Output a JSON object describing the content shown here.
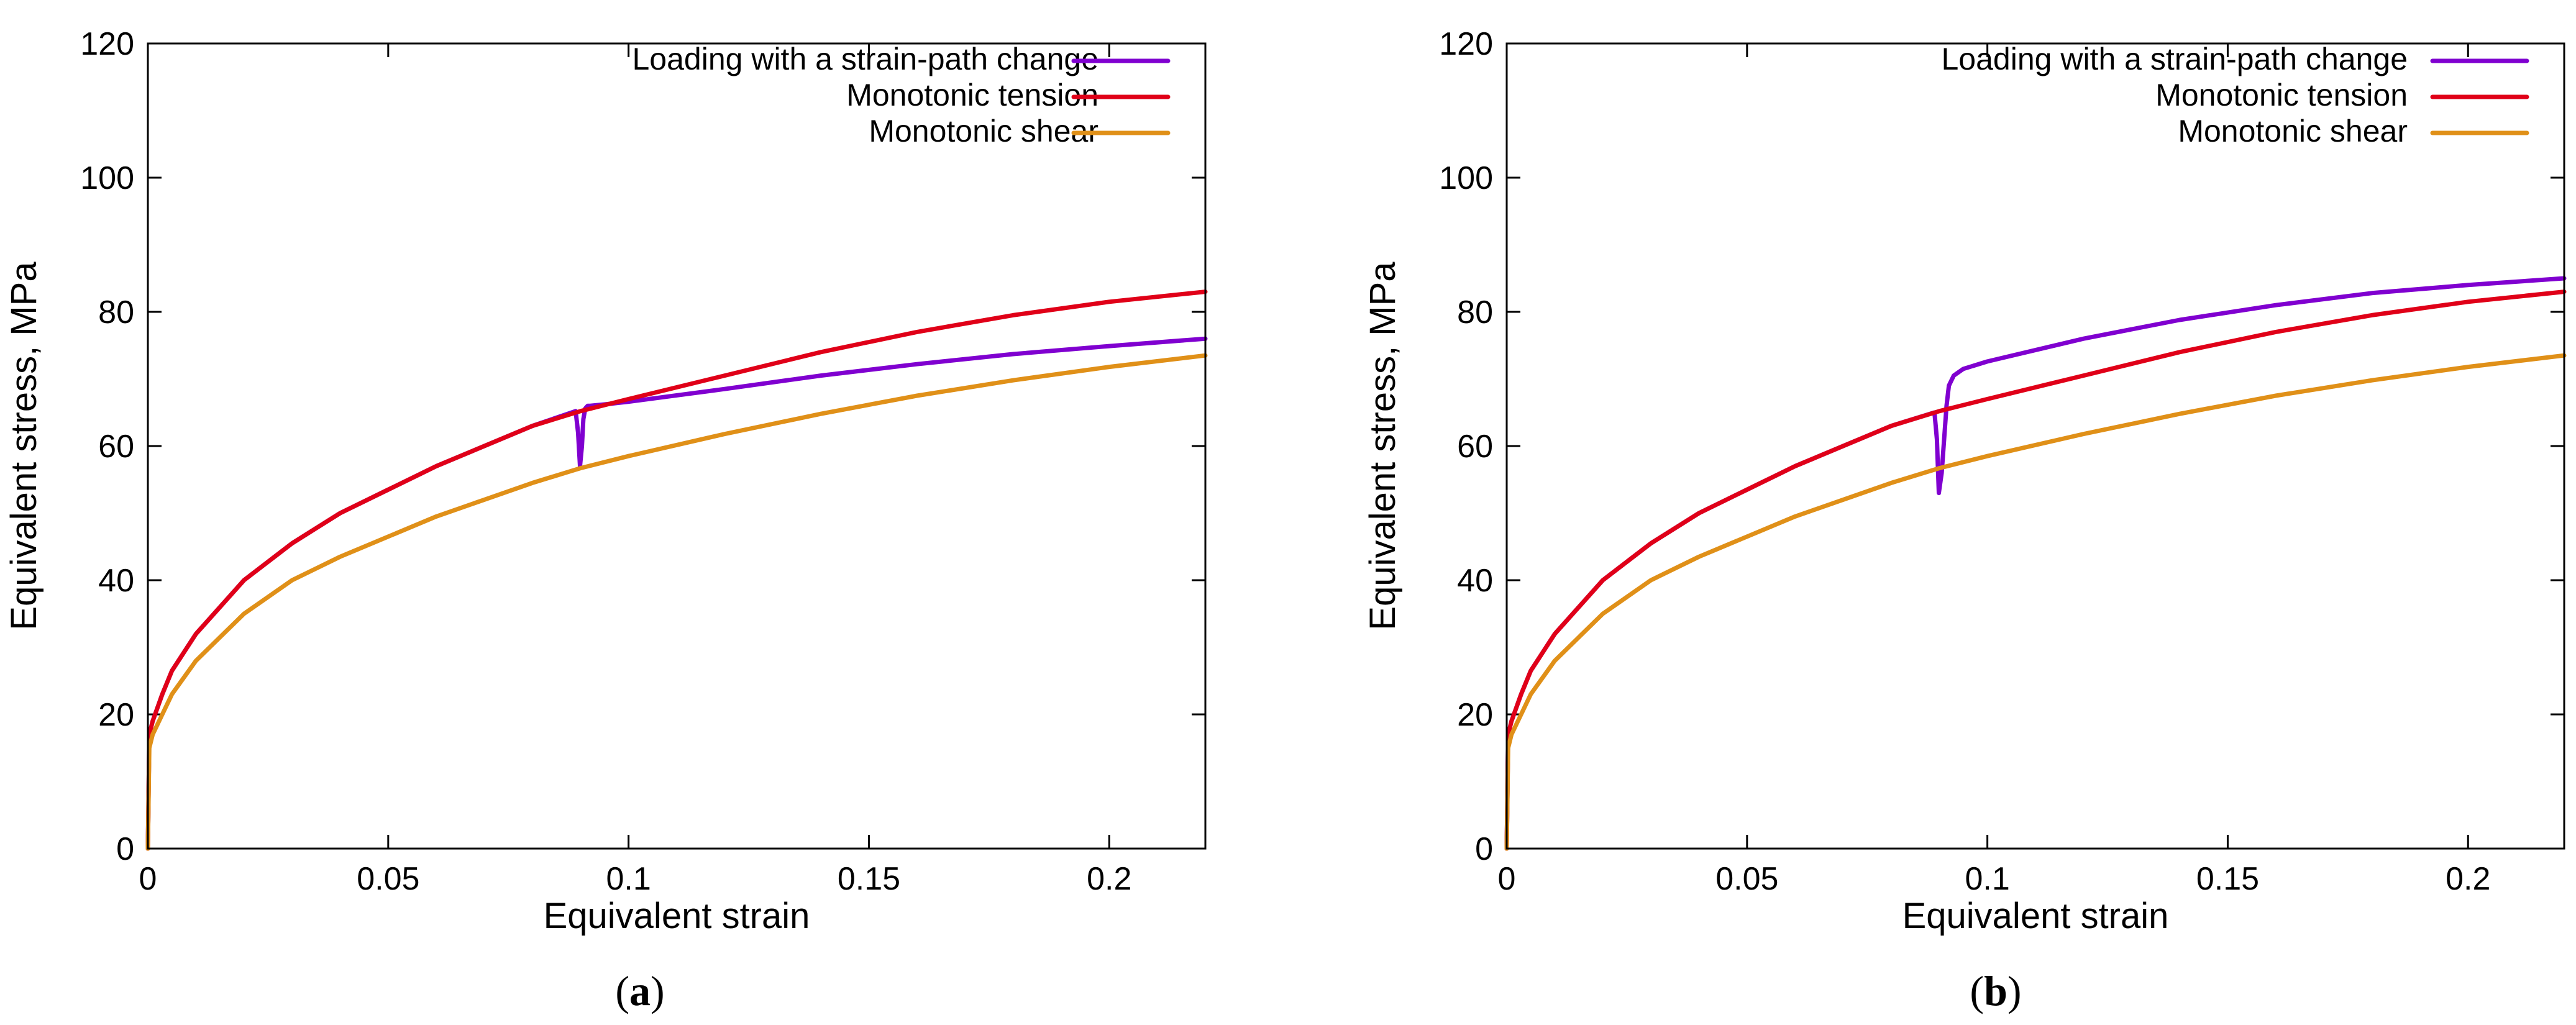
{
  "chart_data": [
    {
      "type": "line",
      "panel": "a",
      "caption_open": "(",
      "caption_label": "a",
      "caption_close": ")",
      "xlabel": "Equivalent strain",
      "ylabel": "Equivalent stress, MPa",
      "xlim": [
        0,
        0.22
      ],
      "ylim": [
        0,
        120
      ],
      "xticks": [
        0,
        0.05,
        0.1,
        0.15,
        0.2
      ],
      "xtick_labels": [
        "0",
        "0.05",
        "0.1",
        "0.15",
        "0.2"
      ],
      "yticks": [
        0,
        20,
        40,
        60,
        80,
        100,
        120
      ],
      "ytick_labels": [
        "0",
        "20",
        "40",
        "60",
        "80",
        "100",
        "120"
      ],
      "grid": false,
      "legend_position": "top-right",
      "series": [
        {
          "name": "Loading with a strain-path change",
          "color": "#8000d0",
          "x": [
            0,
            0.0003,
            0.001,
            0.003,
            0.005,
            0.01,
            0.02,
            0.03,
            0.04,
            0.05,
            0.06,
            0.07,
            0.08,
            0.089,
            0.0895,
            0.0899,
            0.0903,
            0.0906,
            0.091,
            0.0915,
            0.092,
            0.095,
            0.1,
            0.12,
            0.14,
            0.16,
            0.18,
            0.2,
            0.22
          ],
          "y": [
            0,
            17,
            19,
            23,
            26.5,
            32,
            40,
            45.5,
            50,
            53.5,
            57,
            60,
            63,
            65.2,
            62,
            57,
            60,
            64,
            65.6,
            66,
            66,
            66.2,
            66.6,
            68.5,
            70.5,
            72.2,
            73.7,
            74.9,
            76
          ]
        },
        {
          "name": "Monotonic tension",
          "color": "#e00018",
          "x": [
            0,
            0.0003,
            0.001,
            0.003,
            0.005,
            0.01,
            0.02,
            0.03,
            0.04,
            0.05,
            0.06,
            0.07,
            0.08,
            0.09,
            0.1,
            0.12,
            0.14,
            0.16,
            0.18,
            0.2,
            0.22
          ],
          "y": [
            0,
            17,
            19,
            23,
            26.5,
            32,
            40,
            45.5,
            50,
            53.5,
            57,
            60,
            63,
            65.2,
            67,
            70.5,
            74,
            77,
            79.5,
            81.5,
            83
          ]
        },
        {
          "name": "Monotonic shear",
          "color": "#e09018",
          "x": [
            0,
            0.0003,
            0.001,
            0.003,
            0.005,
            0.01,
            0.02,
            0.03,
            0.04,
            0.05,
            0.06,
            0.07,
            0.08,
            0.09,
            0.1,
            0.12,
            0.14,
            0.16,
            0.18,
            0.2,
            0.22
          ],
          "y": [
            0,
            15,
            17,
            20,
            23,
            28,
            35,
            40,
            43.5,
            46.5,
            49.5,
            52,
            54.5,
            56.7,
            58.5,
            61.8,
            64.8,
            67.5,
            69.8,
            71.8,
            73.5
          ]
        }
      ]
    },
    {
      "type": "line",
      "panel": "b",
      "caption_open": "(",
      "caption_label": "b",
      "caption_close": ")",
      "xlabel": "Equivalent strain",
      "ylabel": "Equivalent stress, MPa",
      "xlim": [
        0,
        0.22
      ],
      "ylim": [
        0,
        120
      ],
      "xticks": [
        0,
        0.05,
        0.1,
        0.15,
        0.2
      ],
      "xtick_labels": [
        "0",
        "0.05",
        "0.1",
        "0.15",
        "0.2"
      ],
      "yticks": [
        0,
        20,
        40,
        60,
        80,
        100,
        120
      ],
      "ytick_labels": [
        "0",
        "20",
        "40",
        "60",
        "80",
        "100",
        "120"
      ],
      "grid": false,
      "legend_position": "top-right",
      "series": [
        {
          "name": "Loading with a strain-path change",
          "color": "#8000d0",
          "x": [
            0,
            0.0003,
            0.001,
            0.003,
            0.005,
            0.01,
            0.02,
            0.03,
            0.04,
            0.05,
            0.06,
            0.07,
            0.08,
            0.089,
            0.0895,
            0.0899,
            0.0905,
            0.091,
            0.0915,
            0.092,
            0.093,
            0.095,
            0.1,
            0.12,
            0.14,
            0.16,
            0.18,
            0.2,
            0.22
          ],
          "y": [
            0,
            17,
            19,
            23,
            26.5,
            32,
            40,
            45.5,
            50,
            53.5,
            57,
            60,
            63,
            65,
            61,
            53,
            56,
            61,
            66,
            69,
            70.5,
            71.5,
            72.6,
            76,
            78.8,
            81,
            82.8,
            84,
            85
          ]
        },
        {
          "name": "Monotonic tension",
          "color": "#e00018",
          "x": [
            0,
            0.0003,
            0.001,
            0.003,
            0.005,
            0.01,
            0.02,
            0.03,
            0.04,
            0.05,
            0.06,
            0.07,
            0.08,
            0.09,
            0.1,
            0.12,
            0.14,
            0.16,
            0.18,
            0.2,
            0.22
          ],
          "y": [
            0,
            17,
            19,
            23,
            26.5,
            32,
            40,
            45.5,
            50,
            53.5,
            57,
            60,
            63,
            65.2,
            67,
            70.5,
            74,
            77,
            79.5,
            81.5,
            83
          ]
        },
        {
          "name": "Monotonic shear",
          "color": "#e09018",
          "x": [
            0,
            0.0003,
            0.001,
            0.003,
            0.005,
            0.01,
            0.02,
            0.03,
            0.04,
            0.05,
            0.06,
            0.07,
            0.08,
            0.09,
            0.1,
            0.12,
            0.14,
            0.16,
            0.18,
            0.2,
            0.22
          ],
          "y": [
            0,
            15,
            17,
            20,
            23,
            28,
            35,
            40,
            43.5,
            46.5,
            49.5,
            52,
            54.5,
            56.7,
            58.5,
            61.8,
            64.8,
            67.5,
            69.8,
            71.8,
            73.5
          ]
        }
      ]
    }
  ]
}
